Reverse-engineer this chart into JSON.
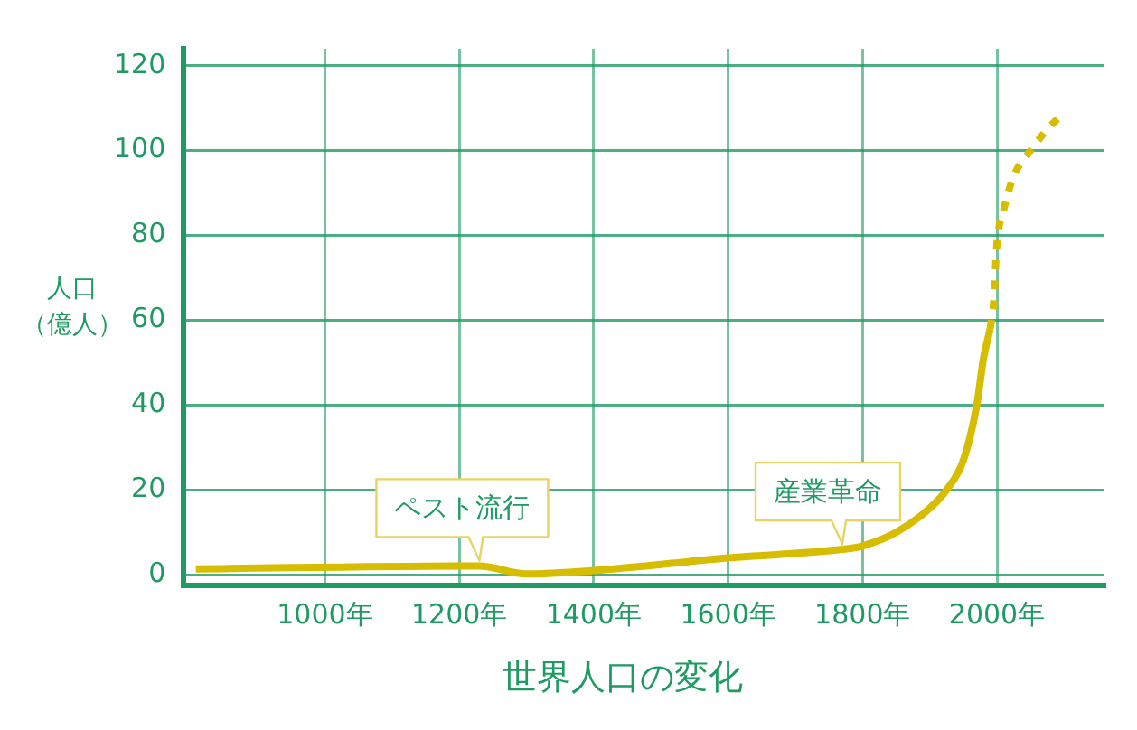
{
  "chart_data": {
    "type": "line",
    "title": "世界人口の変化",
    "ylabel": "人口（億人）",
    "xlim": [
      790,
      2160
    ],
    "ylim": [
      -2.5,
      124
    ],
    "xticks": [
      {
        "value": 1000,
        "label": "1000年"
      },
      {
        "value": 1200,
        "label": "1200年"
      },
      {
        "value": 1400,
        "label": "1400年"
      },
      {
        "value": 1600,
        "label": "1600年"
      },
      {
        "value": 1800,
        "label": "1800年"
      },
      {
        "value": 2000,
        "label": "2000年"
      }
    ],
    "yticks": [
      0,
      20,
      40,
      60,
      80,
      100,
      120
    ],
    "grid": true,
    "legend": false,
    "marker": "none",
    "series": [
      {
        "color": "#d6bd00",
        "line_style": "solid",
        "x": [
          808,
          1230,
          1300,
          1400,
          1600,
          1770,
          1800,
          1850,
          1900,
          1925,
          1950,
          1970,
          1980,
          1990
        ],
        "values": [
          1.4,
          2.1,
          0.2,
          1,
          4,
          6,
          6.8,
          10,
          15.7,
          20,
          27,
          40,
          51,
          58
        ]
      },
      {
        "color": "#d6bd00",
        "line_style": "dotted",
        "x": [
          1990,
          1995,
          2000,
          2010,
          2025,
          2050,
          2075,
          2100
        ],
        "values": [
          58,
          64,
          78,
          86,
          94,
          100,
          105,
          109
        ]
      }
    ],
    "annotations": [
      {
        "text": "ペスト流行",
        "x": 1230,
        "y": 2.1
      },
      {
        "text": "産業革命",
        "x": 1770,
        "y": 6
      }
    ]
  }
}
